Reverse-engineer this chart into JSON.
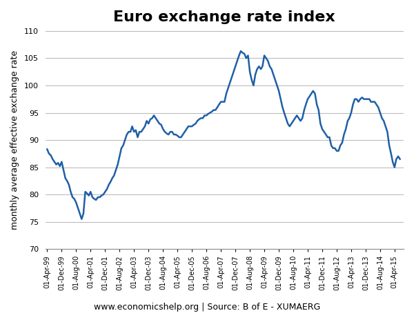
{
  "title": "Euro exchange rate index",
  "ylabel": "monthly average effective exchange rate",
  "xlabel": "www.economicshelp.org | Source: B of E - XUMAERG",
  "line_color": "#1f5fa6",
  "line_width": 1.8,
  "background_color": "#ffffff",
  "ylim": [
    70,
    110
  ],
  "yticks": [
    70,
    75,
    80,
    85,
    90,
    95,
    100,
    105,
    110
  ],
  "title_fontsize": 16,
  "ylabel_fontsize": 9,
  "xlabel_fontsize": 9,
  "data": [
    [
      "1999-04-01",
      88.3
    ],
    [
      "1999-05-01",
      87.5
    ],
    [
      "1999-06-01",
      87.2
    ],
    [
      "1999-07-01",
      86.5
    ],
    [
      "1999-08-01",
      86.0
    ],
    [
      "1999-09-01",
      85.5
    ],
    [
      "1999-10-01",
      85.8
    ],
    [
      "1999-11-01",
      85.2
    ],
    [
      "1999-12-01",
      86.0
    ],
    [
      "2000-01-01",
      84.5
    ],
    [
      "2000-02-01",
      83.0
    ],
    [
      "2000-03-01",
      82.5
    ],
    [
      "2000-04-01",
      81.8
    ],
    [
      "2000-05-01",
      80.5
    ],
    [
      "2000-06-01",
      79.5
    ],
    [
      "2000-07-01",
      79.2
    ],
    [
      "2000-08-01",
      78.5
    ],
    [
      "2000-09-01",
      77.5
    ],
    [
      "2000-10-01",
      76.5
    ],
    [
      "2000-11-01",
      75.5
    ],
    [
      "2000-12-01",
      76.5
    ],
    [
      "2001-01-01",
      80.5
    ],
    [
      "2001-02-01",
      80.2
    ],
    [
      "2001-03-01",
      79.8
    ],
    [
      "2001-04-01",
      80.5
    ],
    [
      "2001-05-01",
      79.5
    ],
    [
      "2001-06-01",
      79.2
    ],
    [
      "2001-07-01",
      79.0
    ],
    [
      "2001-08-01",
      79.5
    ],
    [
      "2001-09-01",
      79.5
    ],
    [
      "2001-10-01",
      79.8
    ],
    [
      "2001-11-01",
      80.0
    ],
    [
      "2001-12-01",
      80.5
    ],
    [
      "2002-01-01",
      81.0
    ],
    [
      "2002-02-01",
      81.8
    ],
    [
      "2002-03-01",
      82.3
    ],
    [
      "2002-04-01",
      83.0
    ],
    [
      "2002-05-01",
      83.5
    ],
    [
      "2002-06-01",
      84.5
    ],
    [
      "2002-07-01",
      85.5
    ],
    [
      "2002-08-01",
      87.0
    ],
    [
      "2002-09-01",
      88.5
    ],
    [
      "2002-10-01",
      89.0
    ],
    [
      "2002-11-01",
      90.0
    ],
    [
      "2002-12-01",
      91.0
    ],
    [
      "2003-01-01",
      91.5
    ],
    [
      "2003-02-01",
      91.5
    ],
    [
      "2003-03-01",
      92.5
    ],
    [
      "2003-04-01",
      91.5
    ],
    [
      "2003-05-01",
      91.8
    ],
    [
      "2003-06-01",
      90.5
    ],
    [
      "2003-07-01",
      91.5
    ],
    [
      "2003-08-01",
      91.5
    ],
    [
      "2003-09-01",
      92.0
    ],
    [
      "2003-10-01",
      92.5
    ],
    [
      "2003-11-01",
      93.5
    ],
    [
      "2003-12-01",
      93.0
    ],
    [
      "2004-01-01",
      93.8
    ],
    [
      "2004-02-01",
      94.0
    ],
    [
      "2004-03-01",
      94.5
    ],
    [
      "2004-04-01",
      94.0
    ],
    [
      "2004-05-01",
      93.5
    ],
    [
      "2004-06-01",
      93.0
    ],
    [
      "2004-07-01",
      92.8
    ],
    [
      "2004-08-01",
      92.0
    ],
    [
      "2004-09-01",
      91.5
    ],
    [
      "2004-10-01",
      91.2
    ],
    [
      "2004-11-01",
      91.0
    ],
    [
      "2004-12-01",
      91.5
    ],
    [
      "2005-01-01",
      91.5
    ],
    [
      "2005-02-01",
      91.0
    ],
    [
      "2005-03-01",
      91.0
    ],
    [
      "2005-04-01",
      90.8
    ],
    [
      "2005-05-01",
      90.5
    ],
    [
      "2005-06-01",
      90.5
    ],
    [
      "2005-07-01",
      91.0
    ],
    [
      "2005-08-01",
      91.5
    ],
    [
      "2005-09-01",
      92.0
    ],
    [
      "2005-10-01",
      92.5
    ],
    [
      "2005-11-01",
      92.5
    ],
    [
      "2005-12-01",
      92.5
    ],
    [
      "2006-01-01",
      92.8
    ],
    [
      "2006-02-01",
      93.0
    ],
    [
      "2006-03-01",
      93.5
    ],
    [
      "2006-04-01",
      93.8
    ],
    [
      "2006-05-01",
      94.0
    ],
    [
      "2006-06-01",
      94.0
    ],
    [
      "2006-07-01",
      94.5
    ],
    [
      "2006-08-01",
      94.5
    ],
    [
      "2006-09-01",
      94.8
    ],
    [
      "2006-10-01",
      95.0
    ],
    [
      "2006-11-01",
      95.2
    ],
    [
      "2006-12-01",
      95.5
    ],
    [
      "2007-01-01",
      95.5
    ],
    [
      "2007-02-01",
      96.0
    ],
    [
      "2007-03-01",
      96.5
    ],
    [
      "2007-04-01",
      97.0
    ],
    [
      "2007-05-01",
      97.0
    ],
    [
      "2007-06-01",
      97.0
    ],
    [
      "2007-07-01",
      98.5
    ],
    [
      "2007-08-01",
      99.5
    ],
    [
      "2007-09-01",
      100.5
    ],
    [
      "2007-10-01",
      101.5
    ],
    [
      "2007-11-01",
      102.5
    ],
    [
      "2007-12-01",
      103.5
    ],
    [
      "2008-01-01",
      104.5
    ],
    [
      "2008-02-01",
      105.5
    ],
    [
      "2008-03-01",
      106.3
    ],
    [
      "2008-04-01",
      106.0
    ],
    [
      "2008-05-01",
      105.8
    ],
    [
      "2008-06-01",
      105.0
    ],
    [
      "2008-07-01",
      105.5
    ],
    [
      "2008-08-01",
      102.5
    ],
    [
      "2008-09-01",
      101.0
    ],
    [
      "2008-10-01",
      100.0
    ],
    [
      "2008-11-01",
      102.0
    ],
    [
      "2008-12-01",
      103.0
    ],
    [
      "2009-01-01",
      103.5
    ],
    [
      "2009-02-01",
      103.0
    ],
    [
      "2009-03-01",
      103.5
    ],
    [
      "2009-04-01",
      105.5
    ],
    [
      "2009-05-01",
      105.0
    ],
    [
      "2009-06-01",
      104.5
    ],
    [
      "2009-07-01",
      103.5
    ],
    [
      "2009-08-01",
      103.0
    ],
    [
      "2009-09-01",
      102.0
    ],
    [
      "2009-10-01",
      101.0
    ],
    [
      "2009-11-01",
      100.0
    ],
    [
      "2009-12-01",
      99.0
    ],
    [
      "2010-01-01",
      97.5
    ],
    [
      "2010-02-01",
      96.0
    ],
    [
      "2010-03-01",
      95.0
    ],
    [
      "2010-04-01",
      94.0
    ],
    [
      "2010-05-01",
      93.0
    ],
    [
      "2010-06-01",
      92.5
    ],
    [
      "2010-07-01",
      93.0
    ],
    [
      "2010-08-01",
      93.5
    ],
    [
      "2010-09-01",
      94.0
    ],
    [
      "2010-10-01",
      94.5
    ],
    [
      "2010-11-01",
      94.0
    ],
    [
      "2010-12-01",
      93.5
    ],
    [
      "2011-01-01",
      94.0
    ],
    [
      "2011-02-01",
      95.5
    ],
    [
      "2011-03-01",
      96.5
    ],
    [
      "2011-04-01",
      97.5
    ],
    [
      "2011-05-01",
      98.0
    ],
    [
      "2011-06-01",
      98.5
    ],
    [
      "2011-07-01",
      99.0
    ],
    [
      "2011-08-01",
      98.5
    ],
    [
      "2011-09-01",
      96.5
    ],
    [
      "2011-10-01",
      95.5
    ],
    [
      "2011-11-01",
      93.0
    ],
    [
      "2011-12-01",
      92.0
    ],
    [
      "2012-01-01",
      91.5
    ],
    [
      "2012-02-01",
      91.0
    ],
    [
      "2012-03-01",
      90.5
    ],
    [
      "2012-04-01",
      90.5
    ],
    [
      "2012-05-01",
      89.0
    ],
    [
      "2012-06-01",
      88.5
    ],
    [
      "2012-07-01",
      88.5
    ],
    [
      "2012-08-01",
      88.0
    ],
    [
      "2012-09-01",
      88.0
    ],
    [
      "2012-10-01",
      89.0
    ],
    [
      "2012-11-01",
      89.5
    ],
    [
      "2012-12-01",
      91.0
    ],
    [
      "2013-01-01",
      92.0
    ],
    [
      "2013-02-01",
      93.5
    ],
    [
      "2013-03-01",
      94.0
    ],
    [
      "2013-04-01",
      95.0
    ],
    [
      "2013-05-01",
      96.5
    ],
    [
      "2013-06-01",
      97.5
    ],
    [
      "2013-07-01",
      97.5
    ],
    [
      "2013-08-01",
      97.0
    ],
    [
      "2013-09-01",
      97.5
    ],
    [
      "2013-10-01",
      97.8
    ],
    [
      "2013-11-01",
      97.5
    ],
    [
      "2013-12-01",
      97.5
    ],
    [
      "2014-01-01",
      97.5
    ],
    [
      "2014-02-01",
      97.5
    ],
    [
      "2014-03-01",
      97.0
    ],
    [
      "2014-04-01",
      97.0
    ],
    [
      "2014-05-01",
      97.0
    ],
    [
      "2014-06-01",
      96.5
    ],
    [
      "2014-07-01",
      96.0
    ],
    [
      "2014-08-01",
      95.0
    ],
    [
      "2014-09-01",
      94.0
    ],
    [
      "2014-10-01",
      93.5
    ],
    [
      "2014-11-01",
      92.5
    ],
    [
      "2014-12-01",
      91.5
    ],
    [
      "2015-01-01",
      89.0
    ],
    [
      "2015-02-01",
      87.5
    ],
    [
      "2015-03-01",
      86.0
    ],
    [
      "2015-04-01",
      85.0
    ],
    [
      "2015-05-01",
      86.5
    ],
    [
      "2015-06-01",
      87.0
    ],
    [
      "2015-07-01",
      86.5
    ]
  ],
  "xtick_dates": [
    "1999-04-01",
    "1999-12-01",
    "2000-08-01",
    "2001-04-01",
    "2001-12-01",
    "2002-08-01",
    "2003-04-01",
    "2003-12-01",
    "2004-08-01",
    "2005-04-01",
    "2005-12-01",
    "2006-08-01",
    "2007-04-01",
    "2007-12-01",
    "2008-08-01",
    "2009-04-01",
    "2009-12-01",
    "2010-08-01",
    "2011-04-01",
    "2011-12-01",
    "2012-08-01",
    "2013-04-01",
    "2013-12-01",
    "2014-08-01",
    "2015-04-01"
  ],
  "xtick_labels": [
    "01-Apr-99",
    "01-Dec-99",
    "01-Aug-00",
    "01-Apr-01",
    "01-Dec-01",
    "01-Aug-02",
    "01-Apr-03",
    "01-Dec-03",
    "01-Aug-04",
    "01-Apr-05",
    "01-Dec-05",
    "01-Aug-06",
    "01-Apr-07",
    "01-Dec-07",
    "01-Aug-08",
    "01-Apr-09",
    "01-Dec-09",
    "01-Aug-10",
    "01-Apr-11",
    "01-Dec-11",
    "01-Aug-12",
    "01-Apr-13",
    "01-Dec-13",
    "01-Aug-14",
    "01-Apr-15"
  ]
}
